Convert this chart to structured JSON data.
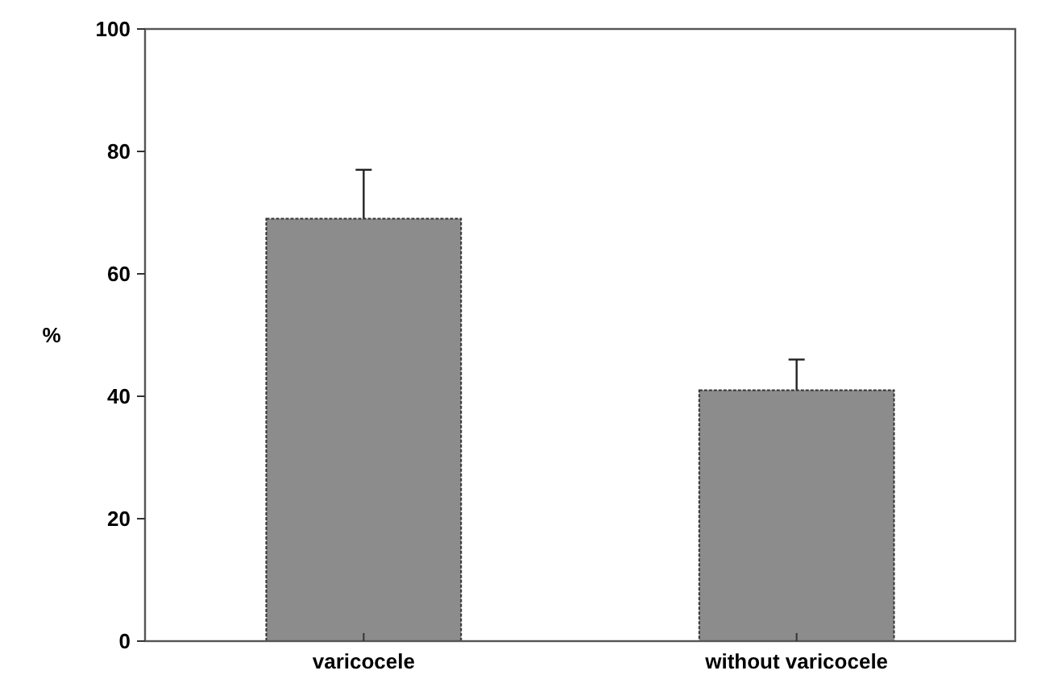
{
  "chart_data": {
    "type": "bar",
    "ylabel": "%",
    "categories": [
      "varicocele",
      "without varicocele"
    ],
    "values": [
      69,
      41
    ],
    "errors": [
      [
        69,
        77
      ],
      [
        41,
        46
      ]
    ],
    "color": "#8c8c8c",
    "ylim": [
      0,
      100
    ],
    "yticks": [
      0,
      20,
      40,
      60,
      80,
      100
    ],
    "grid": false
  }
}
